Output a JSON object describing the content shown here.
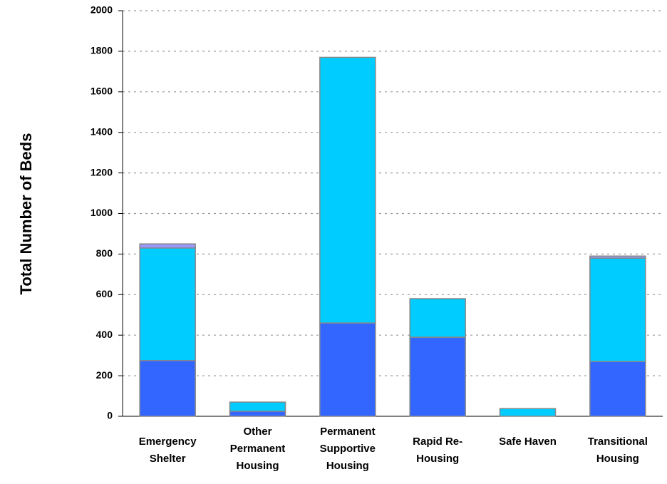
{
  "chart_data": {
    "type": "stacked_bar",
    "y_label": "Total Number of Beds",
    "categories": [
      "Emergency Shelter",
      "Other Permanent Housing",
      "Permanent Supportive Housing",
      "Rapid Re-Housing",
      "Safe Haven",
      "Transitional Housing"
    ],
    "series": [
      {
        "color": "#3366ff",
        "values": [
          275,
          25,
          460,
          390,
          0,
          270
        ]
      },
      {
        "color": "#00ccff",
        "values": [
          555,
          45,
          1310,
          190,
          38,
          510
        ]
      },
      {
        "color": "#9999ff",
        "values": [
          20,
          0,
          0,
          0,
          0,
          10
        ]
      }
    ],
    "ylim": [
      0,
      2000
    ],
    "yticks": [
      0,
      200,
      400,
      600,
      800,
      1000,
      1200,
      1400,
      1600,
      1800,
      2000
    ],
    "grid": true
  }
}
